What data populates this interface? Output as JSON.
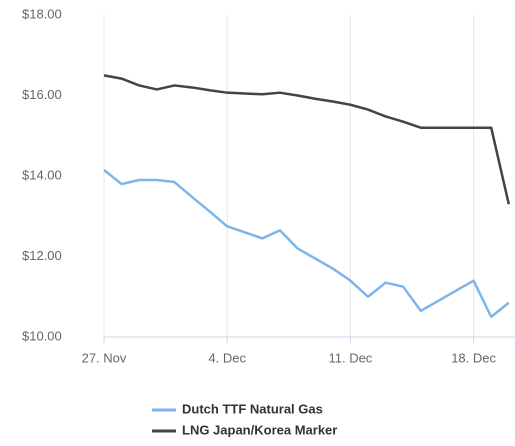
{
  "chart_data": {
    "type": "line",
    "categories": [
      "27. Nov",
      null,
      null,
      null,
      null,
      null,
      null,
      "4. Dec",
      null,
      null,
      null,
      null,
      null,
      null,
      "11. Dec",
      null,
      null,
      null,
      null,
      null,
      null,
      "18. Dec",
      null,
      null
    ],
    "series": [
      {
        "name": "Dutch TTF Natural Gas",
        "color": "#7cb5ec",
        "values": [
          14.15,
          13.8,
          13.9,
          13.9,
          13.85,
          13.48,
          13.12,
          12.75,
          12.6,
          12.45,
          12.65,
          12.2,
          11.95,
          11.7,
          11.4,
          11.0,
          11.35,
          11.25,
          10.65,
          10.9,
          11.15,
          11.4,
          10.5,
          10.85
        ]
      },
      {
        "name": "LNG Japan/Korea Marker",
        "color": "#434348",
        "values": [
          16.5,
          16.42,
          16.25,
          16.15,
          16.25,
          16.2,
          16.13,
          16.07,
          16.05,
          16.03,
          16.07,
          16.0,
          15.92,
          15.85,
          15.77,
          15.65,
          15.48,
          15.35,
          15.2,
          15.2,
          15.2,
          15.2,
          15.2,
          13.3
        ]
      }
    ],
    "ylim": [
      10,
      18
    ],
    "yticks": [
      {
        "value": 10,
        "label": "$10.00"
      },
      {
        "value": 12,
        "label": "$12.00"
      },
      {
        "value": 14,
        "label": "$14.00"
      },
      {
        "value": 16,
        "label": "$16.00"
      },
      {
        "value": 18,
        "label": "$18.00"
      }
    ],
    "grid": true
  }
}
